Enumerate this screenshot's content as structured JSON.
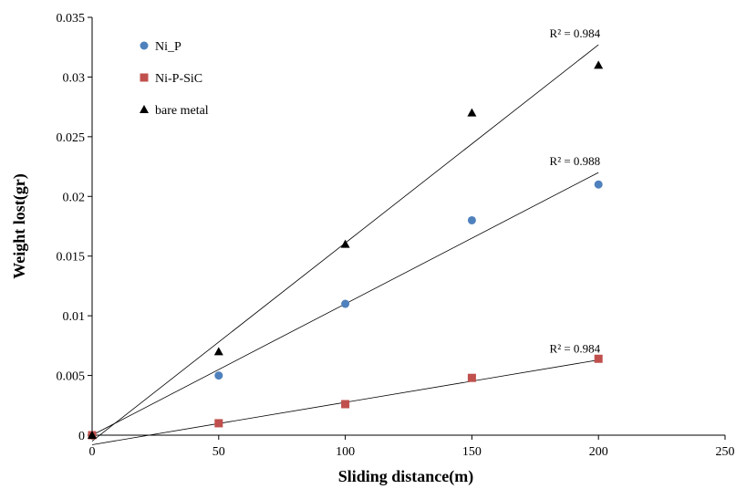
{
  "chart_data": {
    "type": "scatter",
    "xlabel": "Sliding distance(m)",
    "ylabel": "Weight lost(gr)",
    "xlim": [
      0,
      250
    ],
    "ylim": [
      0,
      0.035
    ],
    "xticks": [
      "0",
      "50",
      "100",
      "150",
      "200",
      "250"
    ],
    "yticks": [
      "0",
      "0.005",
      "0.01",
      "0.015",
      "0.02",
      "0.025",
      "0.03",
      "0.035"
    ],
    "grid": false,
    "legend": "top-left",
    "series": [
      {
        "name": "Ni_P",
        "marker": "circle",
        "color": "#4F81BD",
        "x": [
          0,
          50,
          100,
          150,
          200
        ],
        "y": [
          0,
          0.005,
          0.011,
          0.018,
          0.021
        ],
        "trendline": {
          "y_at": [
            0,
            0.022
          ],
          "r2_label": "R² = 0.988"
        }
      },
      {
        "name": "Ni-P-SiC",
        "marker": "square",
        "color": "#C0504D",
        "x": [
          0,
          50,
          100,
          150,
          200
        ],
        "y": [
          0,
          0.001,
          0.0026,
          0.0048,
          0.0064
        ],
        "trendline": {
          "y_at": [
            -0.0008,
            0.0063
          ],
          "r2_label": "R² = 0.984"
        }
      },
      {
        "name": "bare metal",
        "marker": "triangle",
        "color": "#000000",
        "x": [
          0,
          50,
          100,
          150,
          200
        ],
        "y": [
          0,
          0.007,
          0.016,
          0.027,
          0.031
        ],
        "trendline": {
          "y_at": [
            -0.0005,
            0.0327
          ],
          "r2_label": "R² = 0.984"
        }
      }
    ]
  }
}
